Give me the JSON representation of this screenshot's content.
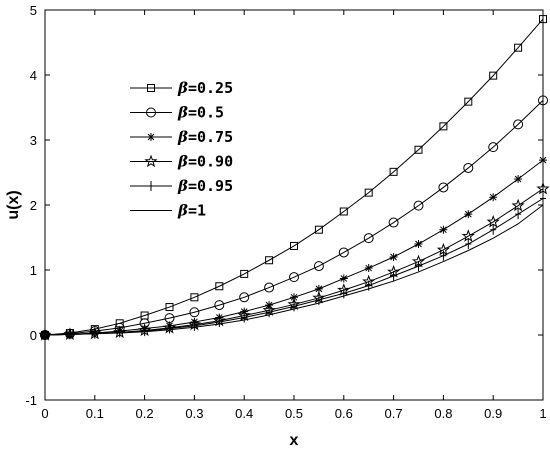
{
  "chart_data": {
    "type": "line",
    "title": "",
    "xlabel": "x",
    "ylabel": "u(x)",
    "xlim": [
      0,
      1
    ],
    "ylim": [
      -1,
      5
    ],
    "xticks": [
      "0",
      "0.1",
      "0.2",
      "0.3",
      "0.4",
      "0.5",
      "0.6",
      "0.7",
      "0.8",
      "0.9",
      "1"
    ],
    "yticks": [
      "-1",
      "0",
      "1",
      "2",
      "3",
      "4",
      "5"
    ],
    "grid": false,
    "legend_position": "upper-left",
    "legend_symbol": "β",
    "x": [
      0,
      0.05,
      0.1,
      0.15,
      0.2,
      0.25,
      0.3,
      0.35,
      0.4,
      0.45,
      0.5,
      0.55,
      0.6,
      0.65,
      0.7,
      0.75,
      0.8,
      0.85,
      0.9,
      0.95,
      1.0
    ],
    "series": [
      {
        "name": "=0.25",
        "marker": "square",
        "values": [
          0,
          0.03,
          0.09,
          0.18,
          0.3,
          0.43,
          0.58,
          0.75,
          0.94,
          1.15,
          1.37,
          1.62,
          1.9,
          2.19,
          2.51,
          2.85,
          3.21,
          3.59,
          3.99,
          4.42,
          4.86
        ]
      },
      {
        "name": "=0.5",
        "marker": "circle",
        "values": [
          0,
          0.02,
          0.06,
          0.11,
          0.18,
          0.26,
          0.35,
          0.46,
          0.58,
          0.73,
          0.89,
          1.06,
          1.27,
          1.49,
          1.73,
          1.99,
          2.27,
          2.57,
          2.89,
          3.24,
          3.61
        ]
      },
      {
        "name": "=0.75",
        "marker": "asterisk",
        "values": [
          0,
          0.01,
          0.03,
          0.06,
          0.1,
          0.14,
          0.2,
          0.27,
          0.36,
          0.46,
          0.58,
          0.71,
          0.87,
          1.03,
          1.2,
          1.4,
          1.62,
          1.86,
          2.12,
          2.4,
          2.69
        ]
      },
      {
        "name": "=0.90",
        "marker": "star",
        "values": [
          0,
          0.01,
          0.02,
          0.04,
          0.07,
          0.11,
          0.16,
          0.22,
          0.3,
          0.38,
          0.47,
          0.57,
          0.69,
          0.82,
          0.97,
          1.13,
          1.31,
          1.52,
          1.74,
          1.99,
          2.25
        ]
      },
      {
        "name": "=0.95",
        "marker": "plus",
        "values": [
          0,
          0.01,
          0.02,
          0.04,
          0.06,
          0.1,
          0.14,
          0.2,
          0.27,
          0.35,
          0.44,
          0.54,
          0.64,
          0.76,
          0.91,
          1.06,
          1.22,
          1.4,
          1.62,
          1.86,
          2.1
        ]
      },
      {
        "name": "=1",
        "marker": "none",
        "values": [
          0,
          0.01,
          0.02,
          0.03,
          0.05,
          0.08,
          0.12,
          0.17,
          0.23,
          0.31,
          0.4,
          0.49,
          0.6,
          0.71,
          0.83,
          0.97,
          1.13,
          1.3,
          1.49,
          1.71,
          2.0
        ]
      }
    ]
  }
}
